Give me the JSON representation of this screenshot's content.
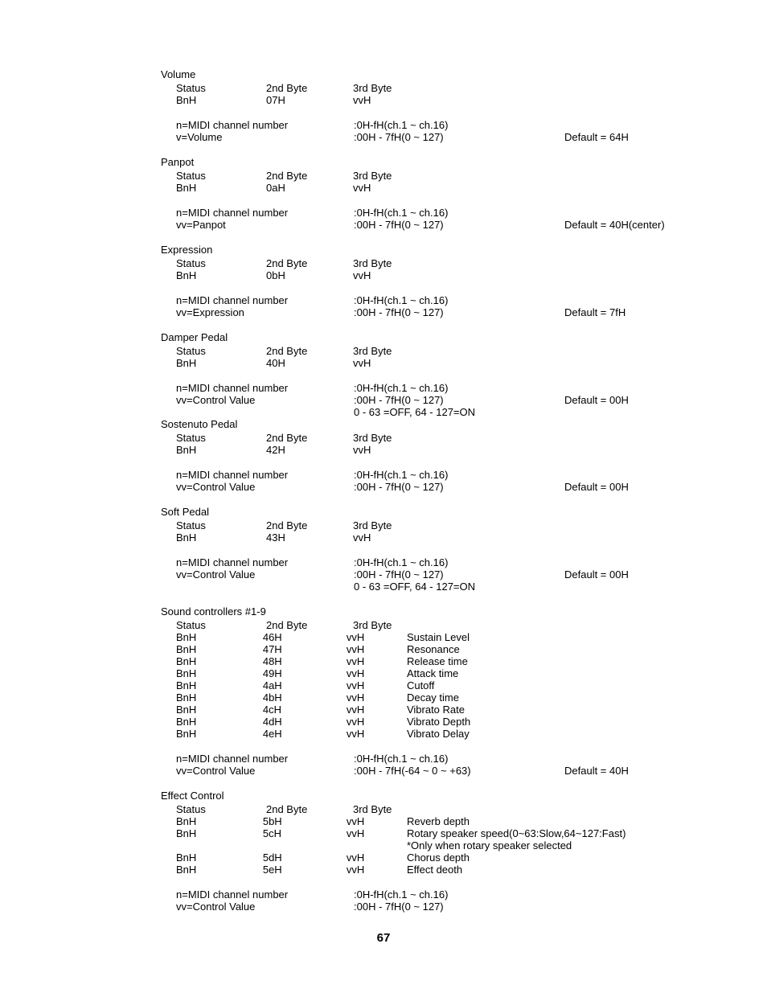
{
  "labels": {
    "status": "Status",
    "byte2": "2nd Byte",
    "byte3": "3rd Byte",
    "bnh": "BnH",
    "vvh": "vvH",
    "n_midi": "n=MIDI channel number",
    "midi_range": ":0H-fH(ch.1 ~ ch.16)"
  },
  "volume": {
    "title": "Volume",
    "b2": "07H",
    "vlabel": "v=Volume",
    "range": ":00H - 7fH(0 ~ 127)",
    "default": "Default = 64H"
  },
  "panpot": {
    "title": "Panpot",
    "b2": "0aH",
    "vlabel": "vv=Panpot",
    "range": ":00H - 7fH(0 ~ 127)",
    "default": "Default = 40H(center)"
  },
  "expression": {
    "title": "Expression",
    "b2": "0bH",
    "vlabel": "vv=Expression",
    "range": ":00H - 7fH(0 ~ 127)",
    "default": "Default = 7fH"
  },
  "damper": {
    "title": "Damper Pedal",
    "b2": "40H",
    "vlabel": "vv=Control Value",
    "range": ":00H - 7fH(0 ~ 127)",
    "note": " 0 - 63 =OFF, 64 - 127=ON",
    "default": "Default = 00H"
  },
  "sostenuto": {
    "title": "Sostenuto Pedal",
    "b2": "42H",
    "vlabel": "vv=Control Value",
    "range": ":00H - 7fH(0 ~ 127)",
    "default": "Default = 00H"
  },
  "soft": {
    "title": "Soft Pedal",
    "b2": "43H",
    "vlabel": "vv=Control Value",
    "range": ":00H - 7fH(0 ~ 127)",
    "note": " 0 - 63 =OFF, 64 - 127=ON",
    "default": "Default = 00H"
  },
  "sound": {
    "title": "Sound controllers #1-9",
    "rows": [
      {
        "b2": "46H",
        "name": "Sustain Level"
      },
      {
        "b2": "47H",
        "name": "Resonance"
      },
      {
        "b2": "48H",
        "name": "Release time"
      },
      {
        "b2": "49H",
        "name": "Attack time"
      },
      {
        "b2": "4aH",
        "name": "Cutoff"
      },
      {
        "b2": "4bH",
        "name": "Decay time"
      },
      {
        "b2": "4cH",
        "name": "Vibrato Rate"
      },
      {
        "b2": "4dH",
        "name": "Vibrato Depth"
      },
      {
        "b2": "4eH",
        "name": "Vibrato Delay"
      }
    ],
    "vlabel": "vv=Control Value",
    "range": ":00H - 7fH(-64 ~ 0 ~ +63)",
    "default": "Default = 40H"
  },
  "effect": {
    "title": "Effect Control",
    "rows": [
      {
        "b2": "5bH",
        "name": "Reverb depth"
      },
      {
        "b2": "5cH",
        "name": "Rotary speaker speed(0~63:Slow,64~127:Fast)"
      }
    ],
    "rotary_note": "*Only when rotary speaker selected",
    "rows2": [
      {
        "b2": "5dH",
        "name": "Chorus depth"
      },
      {
        "b2": "5eH",
        "name": "Effect deoth"
      }
    ],
    "vlabel": "vv=Control Value",
    "range": ":00H - 7fH(0 ~ 127)"
  },
  "page": "67"
}
